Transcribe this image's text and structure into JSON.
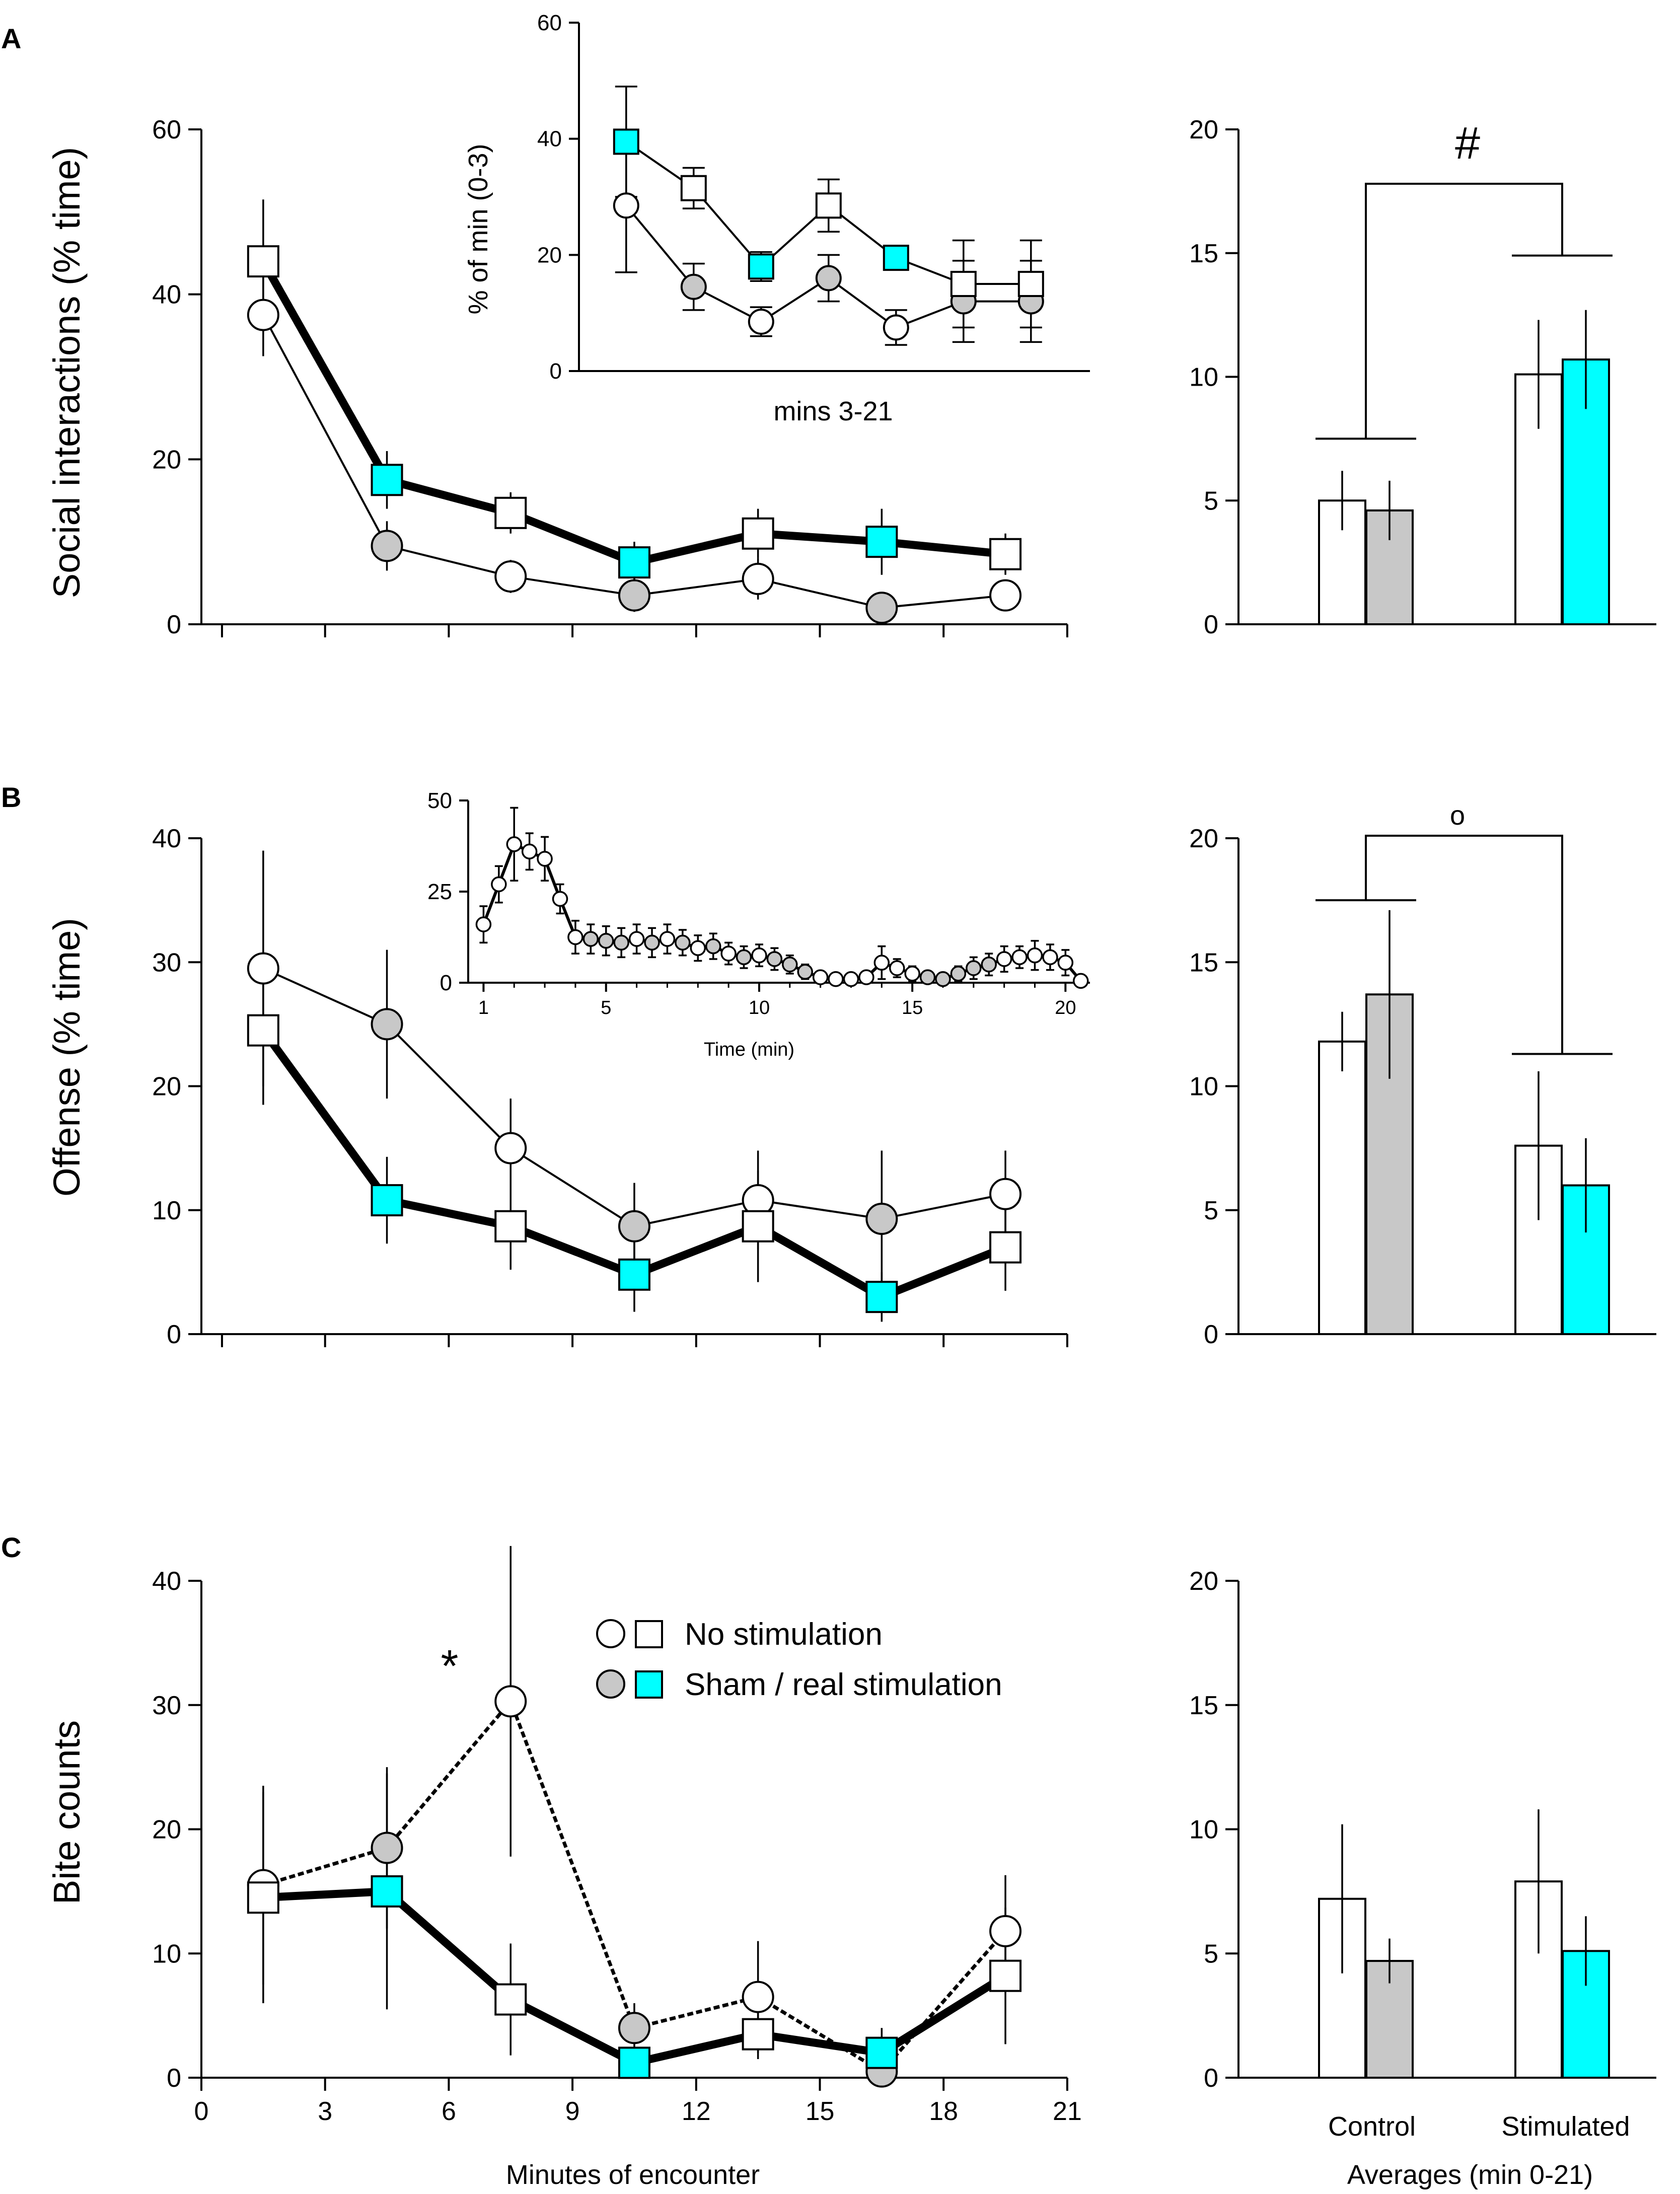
{
  "colors": {
    "cyan": "#00ffff",
    "gray": "#c8c8c8",
    "white": "#ffffff",
    "black": "#000000"
  },
  "legend": {
    "no_stim": "No stimulation",
    "sham_real": "Sham / real stimulation"
  },
  "chart_data": [
    {
      "id": "A-main",
      "panel_label": "A",
      "type": "line",
      "title": "",
      "ylabel": "Social interactions (% time)",
      "xlabel": "",
      "ylim": [
        0,
        60
      ],
      "yticks": [
        "0",
        "20",
        "40",
        "60"
      ],
      "x": [
        1.5,
        4.5,
        7.5,
        10.5,
        13.5,
        16.5,
        19.5
      ],
      "series": [
        {
          "name": "circle",
          "values": [
            37.5,
            9.5,
            5.8,
            3.5,
            5.5,
            2,
            3.5
          ],
          "err": [
            5,
            3,
            2,
            2,
            2.5,
            1,
            1.5
          ],
          "fills": [
            "w",
            "g",
            "w",
            "g",
            "w",
            "g",
            "w"
          ]
        },
        {
          "name": "square",
          "values": [
            44,
            17.5,
            13.5,
            7.5,
            11,
            10,
            8.5
          ],
          "err": [
            7.5,
            3.5,
            2.5,
            2.5,
            3,
            4,
            2.5
          ],
          "fills": [
            "w",
            "c",
            "w",
            "c",
            "w",
            "c",
            "w"
          ]
        }
      ]
    },
    {
      "id": "A-inset",
      "type": "line",
      "ylabel": "% of min (0-3)",
      "xlabel": "mins 3-21",
      "ylim": [
        0,
        60
      ],
      "yticks": [
        "0",
        "20",
        "40",
        "60"
      ],
      "x": [
        1,
        2,
        3,
        4,
        5,
        6,
        7
      ],
      "series": [
        {
          "name": "circle",
          "values": [
            28.5,
            14.5,
            8.5,
            16,
            7.5,
            12,
            12
          ],
          "err": [
            11.5,
            4,
            2.5,
            4,
            3,
            7,
            7
          ],
          "fills": [
            "w",
            "g",
            "w",
            "g",
            "w",
            "g",
            "g"
          ]
        },
        {
          "name": "square",
          "values": [
            39.5,
            31.5,
            18,
            28.5,
            19.5,
            15,
            15
          ],
          "err": [
            9.5,
            3.5,
            2.5,
            4.5,
            1.5,
            7.5,
            7.5
          ],
          "fills": [
            "c",
            "w",
            "c",
            "w",
            "c",
            "w",
            "w"
          ]
        }
      ]
    },
    {
      "id": "A-bars",
      "type": "bar",
      "ylim": [
        0,
        20
      ],
      "yticks": [
        "0",
        "5",
        "10",
        "15",
        "20"
      ],
      "bars": [
        {
          "value": 5.0,
          "err": 1.2,
          "fill": "w"
        },
        {
          "value": 4.6,
          "err": 1.2,
          "fill": "g"
        },
        {
          "value": 10.1,
          "err": 2.2,
          "fill": "w"
        },
        {
          "value": 10.7,
          "err": 2.0,
          "fill": "c"
        }
      ],
      "significance": "#",
      "brackets": [
        7.5,
        14.9
      ]
    },
    {
      "id": "B-main",
      "panel_label": "B",
      "type": "line",
      "ylabel": "Offense (% time)",
      "xlabel": "",
      "ylim": [
        0,
        40
      ],
      "yticks": [
        "0",
        "10",
        "20",
        "30",
        "40"
      ],
      "x": [
        1.5,
        4.5,
        7.5,
        10.5,
        13.5,
        16.5,
        19.5
      ],
      "series": [
        {
          "name": "circle",
          "values": [
            29.5,
            25,
            15,
            8.7,
            10.8,
            9.3,
            11.3
          ],
          "err": [
            9.5,
            6,
            4,
            3.5,
            4,
            5.5,
            3.5
          ],
          "fills": [
            "w",
            "g",
            "w",
            "g",
            "w",
            "g",
            "w"
          ]
        },
        {
          "name": "square",
          "values": [
            24.5,
            10.8,
            8.7,
            4.8,
            8.7,
            3,
            7
          ],
          "err": [
            6,
            3.5,
            3.5,
            3,
            4.5,
            2,
            3.5
          ],
          "fills": [
            "w",
            "c",
            "w",
            "c",
            "w",
            "c",
            "w"
          ]
        }
      ]
    },
    {
      "id": "B-inset",
      "type": "line",
      "xlabel": "Time (min)",
      "ylim": [
        0,
        50
      ],
      "yticks": [
        "0",
        "25",
        "50"
      ],
      "xlim": [
        0.5,
        20.8
      ],
      "xticks": [
        "1",
        "5",
        "10",
        "15",
        "20"
      ],
      "x": [
        1,
        1.5,
        2,
        2.5,
        3,
        3.5,
        4,
        4.5,
        5,
        5.5,
        6,
        6.5,
        7,
        7.5,
        8,
        8.5,
        9,
        9.5,
        10,
        10.5,
        11,
        11.5,
        12,
        12.5,
        13,
        13.5,
        14,
        14.5,
        15,
        15.5,
        16,
        16.5,
        17,
        17.5,
        18,
        18.5,
        19,
        19.5,
        20,
        20.5
      ],
      "values": [
        16,
        27,
        38,
        36,
        34,
        23,
        12.5,
        12,
        11.5,
        11,
        12,
        11,
        12,
        11,
        9.5,
        10,
        8,
        7,
        7.5,
        6.5,
        5,
        3,
        1.5,
        1,
        1,
        1.5,
        5.5,
        4,
        2.5,
        1.5,
        1,
        2.5,
        4,
        5,
        6.5,
        7,
        7.5,
        7,
        5.5,
        0.5
      ],
      "err": [
        5,
        5,
        10,
        5,
        6,
        4,
        4.5,
        4,
        4,
        4,
        4,
        4,
        4,
        3.5,
        3.5,
        3.5,
        3,
        3,
        3,
        3,
        2.5,
        2,
        1.5,
        1,
        1,
        1.5,
        4.5,
        2.5,
        2,
        1,
        1,
        2,
        3,
        3,
        3.5,
        3,
        4,
        3.5,
        3.5,
        1
      ],
      "fills": [
        "w",
        "w",
        "w",
        "w",
        "w",
        "w",
        "w",
        "g",
        "g",
        "g",
        "w",
        "g",
        "w",
        "g",
        "w",
        "g",
        "w",
        "g",
        "w",
        "g",
        "g",
        "g",
        "w",
        "w",
        "w",
        "w",
        "w",
        "w",
        "w",
        "g",
        "g",
        "g",
        "g",
        "g",
        "w",
        "w",
        "w",
        "w",
        "w",
        "w"
      ]
    },
    {
      "id": "B-bars",
      "type": "bar",
      "ylim": [
        0,
        20
      ],
      "yticks": [
        "0",
        "5",
        "10",
        "15",
        "20"
      ],
      "bars": [
        {
          "value": 11.8,
          "err": 1.2,
          "fill": "w"
        },
        {
          "value": 13.7,
          "err": 3.4,
          "fill": "g"
        },
        {
          "value": 7.6,
          "err": 3.0,
          "fill": "w"
        },
        {
          "value": 6.0,
          "err": 1.9,
          "fill": "c"
        }
      ],
      "significance": "o",
      "brackets": [
        17.5,
        11.3
      ]
    },
    {
      "id": "C-main",
      "panel_label": "C",
      "type": "line",
      "ylabel": "Bite counts",
      "xlabel": "Minutes of encounter",
      "ylim": [
        0,
        40
      ],
      "yticks": [
        "0",
        "10",
        "20",
        "30",
        "40"
      ],
      "xlim": [
        0,
        21
      ],
      "xticks": [
        "0",
        "3",
        "6",
        "9",
        "12",
        "15",
        "18",
        "21"
      ],
      "x": [
        1.5,
        4.5,
        7.5,
        10.5,
        13.5,
        16.5,
        19.5
      ],
      "series": [
        {
          "name": "circle",
          "values": [
            15.5,
            18.5,
            30.3,
            4,
            6.5,
            0.5,
            11.8
          ],
          "err": [
            8,
            6.5,
            12.5,
            2,
            4.5,
            2.5,
            4.5
          ],
          "fills": [
            "w",
            "g",
            "w",
            "g",
            "w",
            "g",
            "w"
          ]
        },
        {
          "name": "square",
          "values": [
            14.5,
            15,
            6.3,
            1.2,
            3.5,
            2,
            8.2
          ],
          "err": [
            8.5,
            9.5,
            4.5,
            1,
            2,
            2,
            5.5
          ],
          "fills": [
            "w",
            "c",
            "w",
            "c",
            "w",
            "c",
            "w"
          ]
        }
      ],
      "significance": "*"
    },
    {
      "id": "C-bars",
      "type": "bar",
      "ylim": [
        0,
        20
      ],
      "yticks": [
        "0",
        "5",
        "10",
        "15",
        "20"
      ],
      "bars": [
        {
          "value": 7.2,
          "err": 3.0,
          "fill": "w"
        },
        {
          "value": 4.7,
          "err": 0.9,
          "fill": "g"
        },
        {
          "value": 7.9,
          "err": 2.9,
          "fill": "w"
        },
        {
          "value": 5.1,
          "err": 1.4,
          "fill": "c"
        }
      ],
      "group_labels": [
        "Control",
        "Stimulated"
      ],
      "xlabel": "Averages (min 0-21)"
    }
  ]
}
